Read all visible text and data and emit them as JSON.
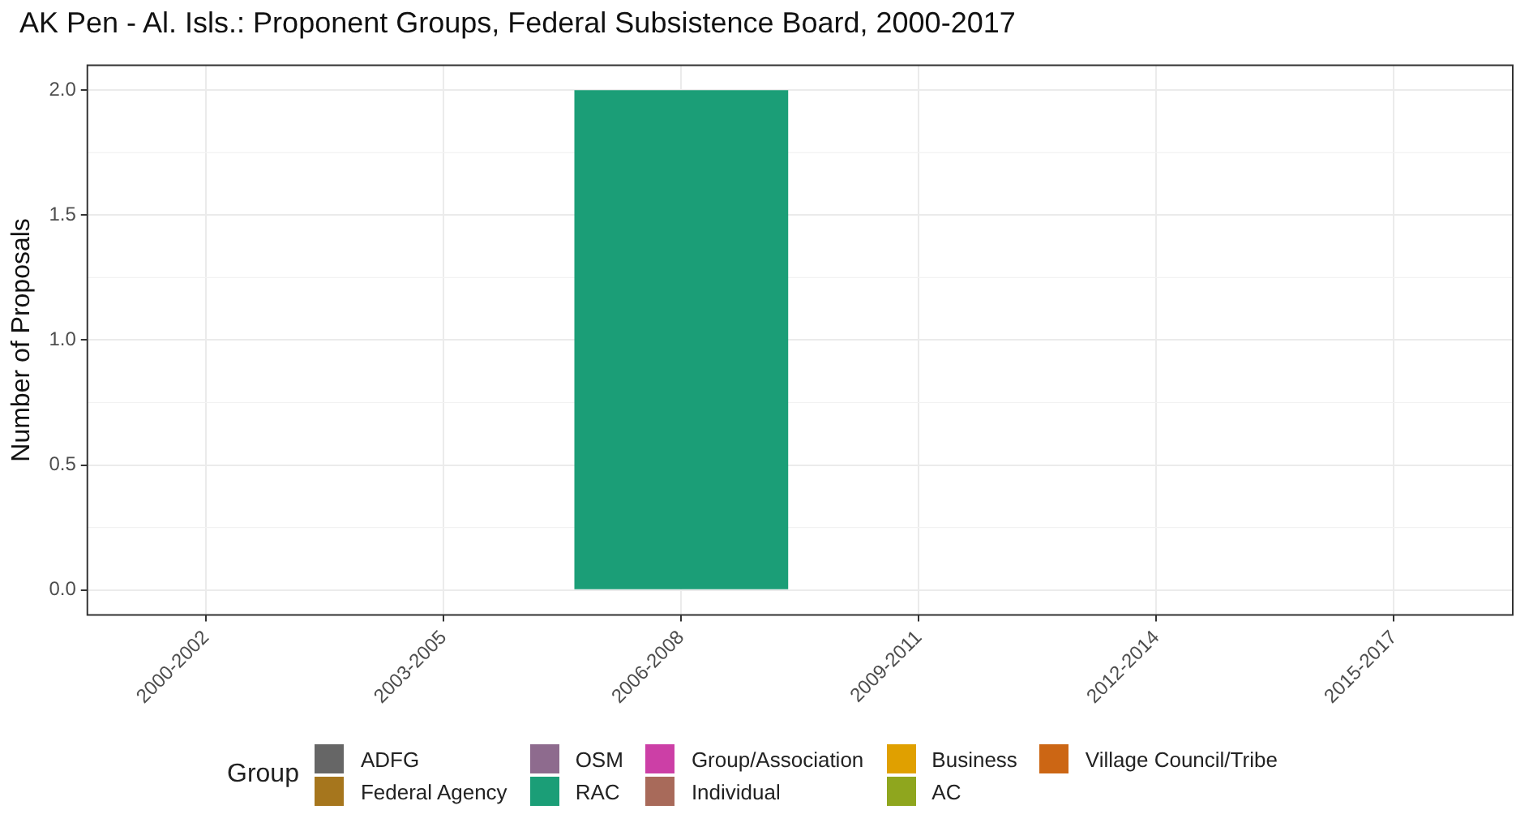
{
  "chart_data": {
    "type": "bar",
    "title": "AK Pen - Al. Isls.: Proponent Groups, Federal Subsistence Board, 2000-2017",
    "ylabel": "Number of Proposals",
    "legend_title": "Group",
    "categories": [
      "2000-2002",
      "2003-2005",
      "2006-2008",
      "2009-2011",
      "2012-2014",
      "2015-2017"
    ],
    "stacked": true,
    "grid": true,
    "legend": "bottom",
    "ylim": [
      -0.1,
      2.1
    ],
    "yticks": [
      {
        "value": 0,
        "label": "0.0"
      },
      {
        "value": 0.5,
        "label": "0.5"
      },
      {
        "value": 1,
        "label": "1.0"
      },
      {
        "value": 1.5,
        "label": "1.5"
      },
      {
        "value": 2,
        "label": "2.0"
      }
    ],
    "series": [
      {
        "name": "ADFG",
        "color": "#666666",
        "values": [
          null,
          null,
          null,
          null,
          null,
          null
        ]
      },
      {
        "name": "Federal Agency",
        "color": "#a6761d",
        "values": [
          null,
          null,
          null,
          null,
          null,
          null
        ]
      },
      {
        "name": "OSM",
        "color": "#8e6b8e",
        "values": [
          null,
          null,
          null,
          null,
          null,
          null
        ]
      },
      {
        "name": "RAC",
        "color": "#1b9e77",
        "values": [
          null,
          null,
          2,
          null,
          null,
          null
        ]
      },
      {
        "name": "Group/Association",
        "color": "#cc3fa6",
        "values": [
          null,
          null,
          null,
          null,
          null,
          null
        ]
      },
      {
        "name": "Individual",
        "color": "#a86a5a",
        "values": [
          null,
          null,
          null,
          null,
          null,
          null
        ]
      },
      {
        "name": "Business",
        "color": "#e0a000",
        "values": [
          null,
          null,
          null,
          null,
          null,
          null
        ]
      },
      {
        "name": "AC",
        "color": "#8fa61e",
        "values": [
          null,
          null,
          null,
          null,
          null,
          null
        ]
      },
      {
        "name": "Village Council/Tribe",
        "color": "#cc6614",
        "values": [
          null,
          null,
          null,
          null,
          null,
          null
        ]
      }
    ]
  }
}
